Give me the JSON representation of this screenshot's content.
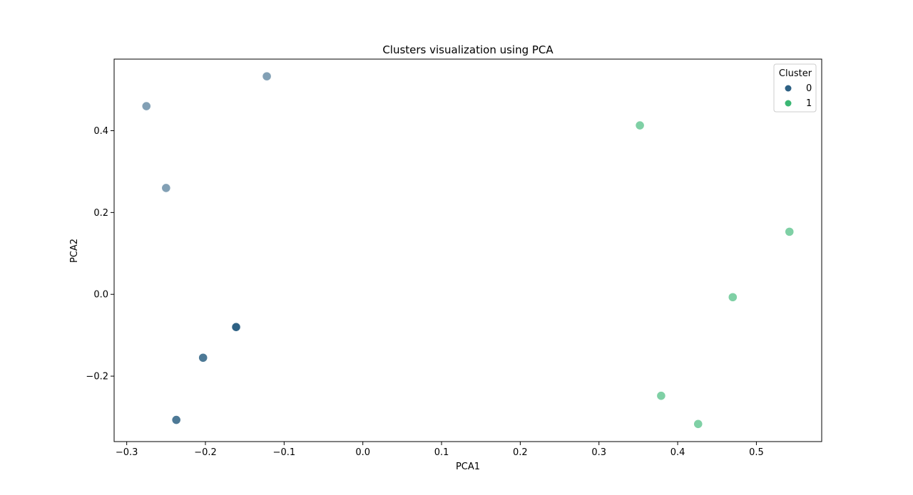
{
  "chart_data": {
    "type": "scatter",
    "title": "Clusters visualization using PCA",
    "xlabel": "PCA1",
    "ylabel": "PCA2",
    "xlim": [
      -0.316,
      0.583
    ],
    "ylim": [
      -0.36,
      0.575
    ],
    "xticks": [
      -0.3,
      -0.2,
      -0.1,
      0.0,
      0.1,
      0.2,
      0.3,
      0.4,
      0.5
    ],
    "xtick_labels": [
      "−0.3",
      "−0.2",
      "−0.1",
      "0.0",
      "0.1",
      "0.2",
      "0.3",
      "0.4",
      "0.5"
    ],
    "yticks": [
      -0.2,
      0.0,
      0.2,
      0.4
    ],
    "ytick_labels": [
      "−0.2",
      "0.0",
      "0.2",
      "0.4"
    ],
    "grid": false,
    "legend": {
      "title": "Cluster",
      "placement": "top-right"
    },
    "series": [
      {
        "name": "0",
        "color": "#2e6184",
        "points": [
          {
            "x": -0.275,
            "y": 0.46,
            "alpha": 0.6
          },
          {
            "x": -0.122,
            "y": 0.533,
            "alpha": 0.6
          },
          {
            "x": -0.25,
            "y": 0.26,
            "alpha": 0.6
          },
          {
            "x": -0.161,
            "y": -0.08,
            "alpha": 1.0
          },
          {
            "x": -0.161,
            "y": -0.08,
            "alpha": 0.6
          },
          {
            "x": -0.203,
            "y": -0.155,
            "alpha": 0.85
          },
          {
            "x": -0.237,
            "y": -0.307,
            "alpha": 0.85
          }
        ]
      },
      {
        "name": "1",
        "color": "#3bb774",
        "points": [
          {
            "x": 0.352,
            "y": 0.413,
            "alpha": 0.65
          },
          {
            "x": 0.542,
            "y": 0.153,
            "alpha": 0.65
          },
          {
            "x": 0.47,
            "y": -0.007,
            "alpha": 0.65
          },
          {
            "x": 0.379,
            "y": -0.248,
            "alpha": 0.65
          },
          {
            "x": 0.426,
            "y": -0.317,
            "alpha": 0.65
          }
        ]
      }
    ]
  }
}
